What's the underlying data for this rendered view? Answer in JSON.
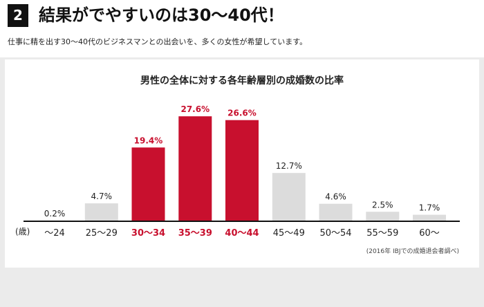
{
  "header": {
    "number": "2",
    "title": "結果がでやすいのは30〜40代！",
    "subtitle": "仕事に精を出す30〜40代のビジネスマンとの出会いを、多くの女性が希望しています。"
  },
  "colors": {
    "highlight": "#c8102e",
    "default_bar": "#dcdcdc",
    "axis": "#111111"
  },
  "chart_data": {
    "type": "bar",
    "title": "男性の全体に対する各年齢層別の成婚数の比率",
    "xlabel": "(歳)",
    "ylabel": "",
    "categories": [
      "〜24",
      "25〜29",
      "30〜34",
      "35〜39",
      "40〜44",
      "45〜49",
      "50〜54",
      "55〜59",
      "60〜"
    ],
    "values": [
      0.2,
      4.7,
      19.4,
      27.6,
      26.6,
      12.7,
      4.6,
      2.5,
      1.7
    ],
    "value_labels": [
      "0.2%",
      "4.7%",
      "19.4%",
      "27.6%",
      "26.6%",
      "12.7%",
      "4.6%",
      "2.5%",
      "1.7%"
    ],
    "highlighted": [
      false,
      false,
      true,
      true,
      true,
      false,
      false,
      false,
      false
    ],
    "ylim": [
      0,
      30
    ],
    "grid": false,
    "source": "(2016年 IBJでの成婚退会者調べ)"
  }
}
